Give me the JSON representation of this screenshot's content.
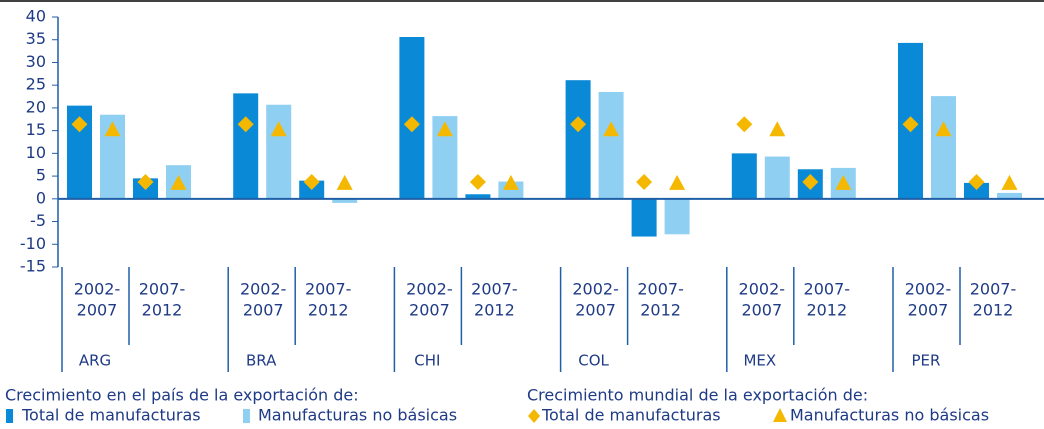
{
  "chart_data": {
    "type": "bar",
    "groups": [
      "ARG",
      "BRA",
      "CHI",
      "COL",
      "MEX",
      "PER"
    ],
    "periods": [
      [
        "2002-",
        "2007"
      ],
      [
        "2007-",
        "2012"
      ]
    ],
    "series": [
      {
        "name": "Total de manufacturas",
        "color": "#0a8ad6",
        "mark": "bar",
        "values": [
          20.5,
          4.5,
          23.2,
          4.0,
          35.6,
          1.0,
          26.1,
          -8.3,
          10.0,
          6.5,
          34.3,
          3.5
        ]
      },
      {
        "name": "Manufacturas no básicas",
        "color": "#8fd0f2",
        "mark": "bar",
        "values": [
          18.5,
          7.4,
          20.7,
          -0.9,
          18.2,
          3.8,
          23.5,
          -7.8,
          9.3,
          6.8,
          22.6,
          1.3
        ]
      },
      {
        "name": "Total de manufacturas",
        "color": "#f5b800",
        "mark": "diamond",
        "values": [
          16.4,
          3.7,
          16.4,
          3.7,
          16.4,
          3.7,
          16.4,
          3.7,
          16.4,
          3.7,
          16.4,
          3.7
        ]
      },
      {
        "name": "Manufacturas no básicas",
        "color": "#f5b800",
        "mark": "triangle",
        "values": [
          15.3,
          3.5,
          15.3,
          3.5,
          15.3,
          3.5,
          15.3,
          3.5,
          15.3,
          3.5,
          15.3,
          3.5
        ]
      }
    ],
    "legend_titles": [
      "Crecimiento en el país de la exportación de:",
      "Crecimiento mundial de la exportación de:"
    ],
    "ylim": [
      -15,
      40
    ],
    "yticks": [
      -15,
      -10,
      -5,
      0,
      5,
      10,
      15,
      20,
      25,
      30,
      35,
      40
    ]
  }
}
